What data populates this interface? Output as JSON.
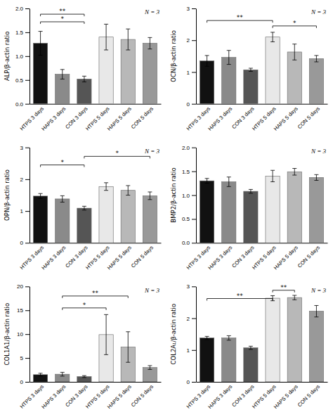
{
  "chart_data": [
    {
      "type": "bar",
      "ylabel": "ALP/β-actin ratio",
      "categories": [
        "HTPS 3 days",
        "HAPS 3 days",
        "CON 3 days",
        "HTPS 5 days",
        "HAPS 5 days",
        "CON 5 days"
      ],
      "values": [
        1.27,
        0.62,
        0.52,
        1.4,
        1.35,
        1.27
      ],
      "errors": [
        0.25,
        0.1,
        0.06,
        0.27,
        0.22,
        0.12
      ],
      "colors": [
        "#111111",
        "#8a8a8a",
        "#555555",
        "#e8e8e8",
        "#b8b8b8",
        "#999999"
      ],
      "ylim": [
        0,
        2.0
      ],
      "yticks": [
        {
          "value": 0.0,
          "label": "0.0"
        },
        0.5,
        {
          "value": 1.0,
          "label": "1.0"
        },
        1.5,
        {
          "value": 2.0,
          "label": "2.0"
        }
      ],
      "annotations": [
        {
          "text": "*",
          "from": "HTPS 3 days",
          "to": "CON 3 days",
          "y": 1.72
        },
        {
          "text": "**",
          "from": "HTPS 3 days",
          "to": "CON 3 days",
          "y": 1.88
        },
        {
          "text": "N = 3"
        }
      ]
    },
    {
      "type": "bar",
      "ylabel": "OCN/β-actin ratio",
      "categories": [
        "HTPS 3 days",
        "HAPS 3 days",
        "CON 3 days",
        "HTPS 5 days",
        "HAPS 5 days",
        "CON 5 days"
      ],
      "values": [
        1.35,
        1.46,
        1.07,
        2.1,
        1.63,
        1.42
      ],
      "errors": [
        0.17,
        0.22,
        0.05,
        0.15,
        0.25,
        0.1
      ],
      "colors": [
        "#111111",
        "#8a8a8a",
        "#555555",
        "#e8e8e8",
        "#b8b8b8",
        "#999999"
      ],
      "ylim": [
        0,
        3.0
      ],
      "yticks": [
        0,
        1,
        2,
        3
      ],
      "annotations": [
        {
          "text": "**",
          "from": "HTPS 3 days",
          "to": "HTPS 5 days",
          "y": 2.62
        },
        {
          "text": "*",
          "from": "HTPS 5 days",
          "to": "CON 5 days",
          "y": 2.45
        },
        {
          "text": "N = 3"
        }
      ]
    },
    {
      "type": "bar",
      "ylabel": "OPN/β-actin ratio",
      "categories": [
        "HTPS 3 days",
        "HAPS 3 days",
        "CON 3 days",
        "HTPS 5 days",
        "HAPS 5 days",
        "CON 5 days"
      ],
      "values": [
        1.47,
        1.38,
        1.09,
        1.77,
        1.65,
        1.48
      ],
      "errors": [
        0.08,
        0.1,
        0.06,
        0.12,
        0.15,
        0.12
      ],
      "colors": [
        "#111111",
        "#8a8a8a",
        "#555555",
        "#e8e8e8",
        "#b8b8b8",
        "#999999"
      ],
      "ylim": [
        0,
        3.0
      ],
      "yticks": [
        0,
        1,
        2,
        3
      ],
      "annotations": [
        {
          "text": "*",
          "from": "HTPS 3 days",
          "to": "CON 3 days",
          "y": 2.45
        },
        {
          "text": "*",
          "from": "CON 3 days",
          "to": "CON 5 days",
          "y": 2.72
        },
        {
          "text": "N = 3"
        }
      ]
    },
    {
      "type": "bar",
      "ylabel": "BMP2/β-actin ratio",
      "categories": [
        "HTPS 3 days",
        "HAPS 3 days",
        "CON 3 days",
        "HTPS 5 days",
        "HAPS 5 days",
        "CON 5 days"
      ],
      "values": [
        1.3,
        1.28,
        1.08,
        1.4,
        1.49,
        1.37
      ],
      "errors": [
        0.05,
        0.1,
        0.04,
        0.12,
        0.07,
        0.06
      ],
      "colors": [
        "#111111",
        "#8a8a8a",
        "#555555",
        "#e8e8e8",
        "#b8b8b8",
        "#999999"
      ],
      "ylim": [
        0,
        2.0
      ],
      "yticks": [
        {
          "value": 0.0,
          "label": "0.0"
        },
        0.5,
        {
          "value": 1.0,
          "label": "1.0"
        },
        1.5,
        {
          "value": 2.0,
          "label": "2.0"
        }
      ],
      "annotations": [
        {
          "text": "N = 3"
        }
      ]
    },
    {
      "type": "bar",
      "ylabel": "COL1A1/β-actin ratio",
      "categories": [
        "HTPS 3 days",
        "HAPS 3 days",
        "CON 3 days",
        "HTPS 5 days",
        "HAPS 5 days",
        "CON 5 days"
      ],
      "values": [
        1.5,
        1.6,
        1.1,
        9.9,
        7.3,
        3.0
      ],
      "errors": [
        0.3,
        0.4,
        0.2,
        4.2,
        3.2,
        0.4
      ],
      "colors": [
        "#111111",
        "#8a8a8a",
        "#555555",
        "#e8e8e8",
        "#b8b8b8",
        "#999999"
      ],
      "ylim": [
        0,
        20
      ],
      "yticks": [
        0,
        5,
        10,
        15,
        20
      ],
      "annotations": [
        {
          "text": "*",
          "from": "HAPS 3 days",
          "to": "HTPS 5 days",
          "y": 15.5
        },
        {
          "text": "**",
          "from": "HAPS 3 days",
          "to": "HAPS 5 days",
          "y": 18.0
        },
        {
          "text": "N = 3"
        }
      ]
    },
    {
      "type": "bar",
      "ylabel": "COL2A₁/β-actin ratio",
      "categories": [
        "HTPS 3 days",
        "HAPS 3 days",
        "CON 3 days",
        "HTPS 5 days",
        "HAPS 5 days",
        "CON 5 days"
      ],
      "values": [
        1.38,
        1.38,
        1.07,
        2.63,
        2.65,
        2.22
      ],
      "errors": [
        0.05,
        0.07,
        0.05,
        0.08,
        0.07,
        0.18
      ],
      "colors": [
        "#111111",
        "#8a8a8a",
        "#555555",
        "#e8e8e8",
        "#b8b8b8",
        "#999999"
      ],
      "ylim": [
        0,
        3.0
      ],
      "yticks": [
        0,
        1,
        2,
        3
      ],
      "annotations": [
        {
          "text": "**",
          "from": "HTPS 3 days",
          "to": "HTPS 5 days",
          "y": 2.62
        },
        {
          "text": "**",
          "from": "HTPS 5 days",
          "to": "HAPS 5 days",
          "y": 2.88
        },
        {
          "text": "N = 3"
        }
      ]
    }
  ]
}
